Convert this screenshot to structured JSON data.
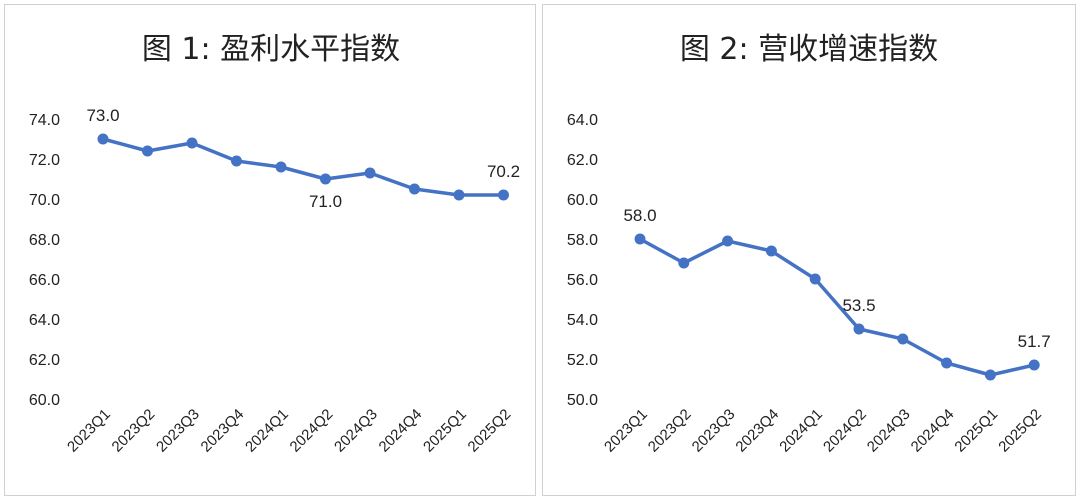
{
  "chart_data": [
    {
      "type": "line",
      "title": "图 1:  盈利水平指数",
      "categories": [
        "2023Q1",
        "2023Q2",
        "2023Q3",
        "2023Q4",
        "2024Q1",
        "2024Q2",
        "2024Q3",
        "2024Q4",
        "2025Q1",
        "2025Q2"
      ],
      "values": [
        73.0,
        72.4,
        72.8,
        71.9,
        71.6,
        71.0,
        71.3,
        70.5,
        70.2,
        70.2
      ],
      "data_labels": [
        {
          "index": 0,
          "text": "73.0",
          "position": "above"
        },
        {
          "index": 5,
          "text": "71.0",
          "position": "below"
        },
        {
          "index": 9,
          "text": "70.2",
          "position": "above"
        }
      ],
      "yticks": [
        "60.0",
        "62.0",
        "64.0",
        "66.0",
        "68.0",
        "70.0",
        "72.0",
        "74.0"
      ],
      "ylim": [
        60,
        74
      ],
      "grid": false,
      "color": "#4472C4"
    },
    {
      "type": "line",
      "title": "图 2:  营收增速指数",
      "categories": [
        "2023Q1",
        "2023Q2",
        "2023Q3",
        "2023Q4",
        "2024Q1",
        "2024Q2",
        "2024Q3",
        "2024Q4",
        "2025Q1",
        "2025Q2"
      ],
      "values": [
        58.0,
        56.8,
        57.9,
        57.4,
        56.0,
        53.5,
        53.0,
        51.8,
        51.2,
        51.7
      ],
      "data_labels": [
        {
          "index": 0,
          "text": "58.0",
          "position": "above"
        },
        {
          "index": 5,
          "text": "53.5",
          "position": "above"
        },
        {
          "index": 9,
          "text": "51.7",
          "position": "above"
        }
      ],
      "yticks": [
        "50.0",
        "52.0",
        "54.0",
        "56.0",
        "58.0",
        "60.0",
        "62.0",
        "64.0"
      ],
      "ylim": [
        50,
        64
      ],
      "grid": false,
      "color": "#4472C4"
    }
  ]
}
